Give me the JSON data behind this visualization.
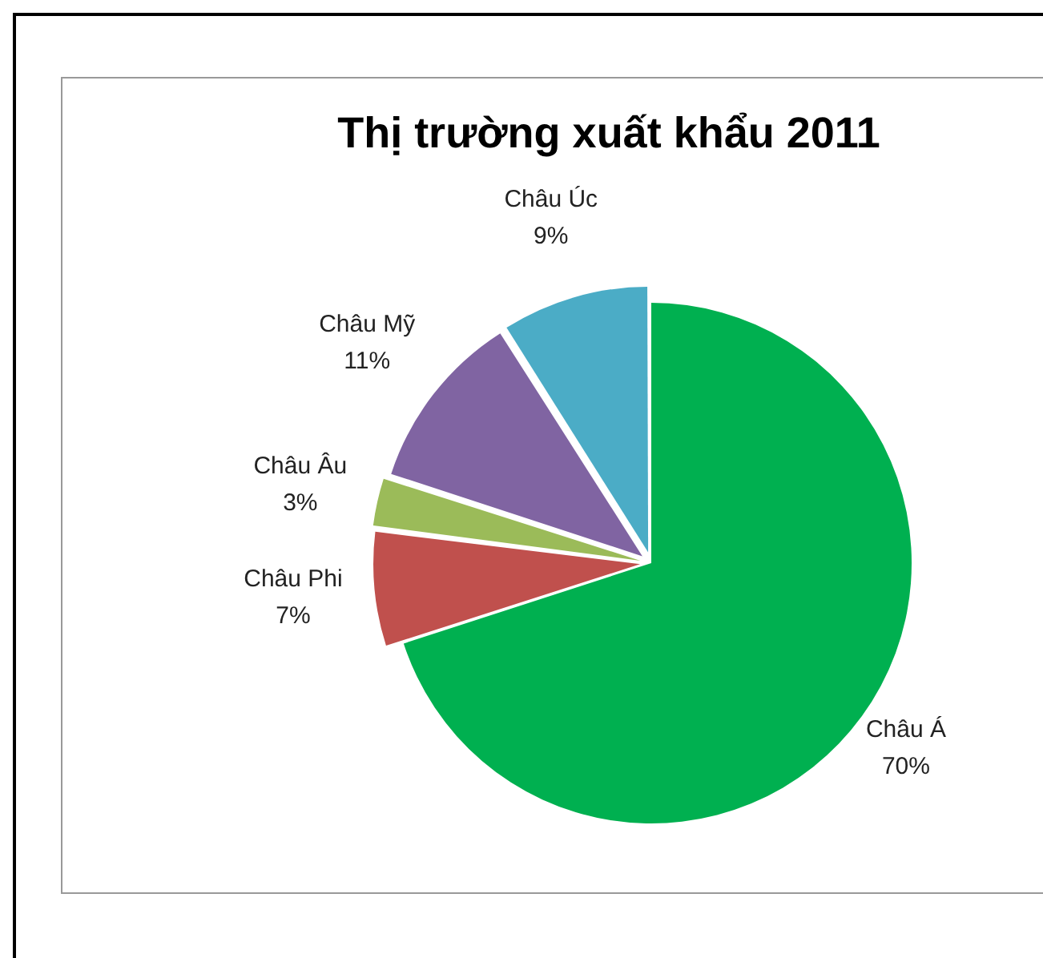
{
  "chart_data": {
    "type": "pie",
    "title": "Thị trường xuất khẩu 2011",
    "categories": [
      "Châu Á",
      "Châu Phi",
      "Châu Âu",
      "Châu Mỹ",
      "Châu Úc"
    ],
    "values": [
      70,
      7,
      3,
      11,
      9
    ],
    "colors": [
      "#00b050",
      "#c0504d",
      "#9bbb59",
      "#8064a2",
      "#4bacc6"
    ],
    "value_labels": [
      "70%",
      "7%",
      "3%",
      "11%",
      "9%"
    ],
    "legend": false
  }
}
